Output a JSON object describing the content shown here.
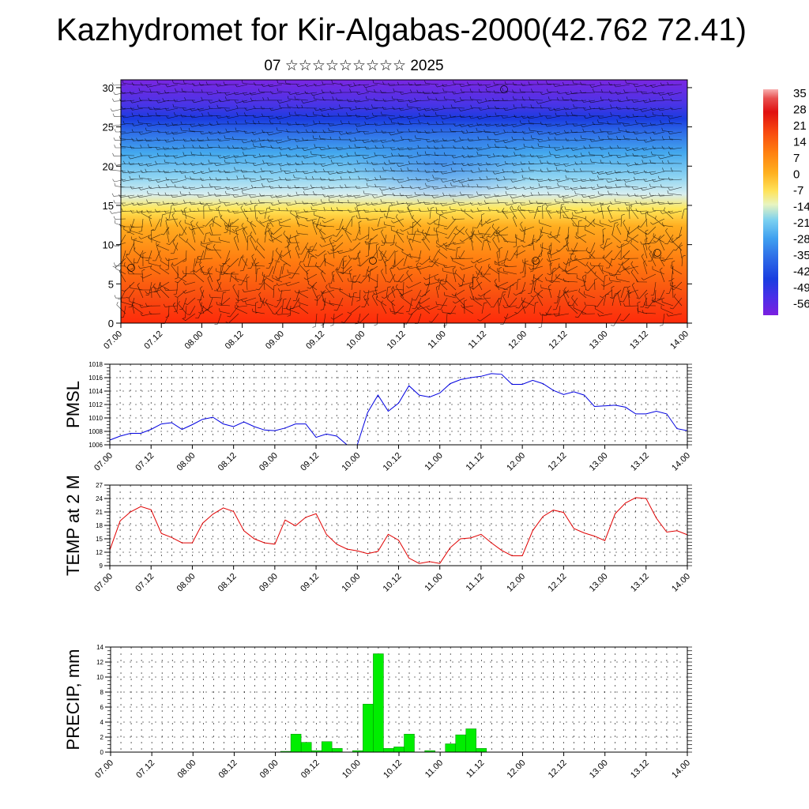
{
  "header": {
    "title": "Kazhydromet for Kir-Algabas-2000(42.762 72.41)",
    "subtitle": "07 ☆☆☆☆☆☆☆☆☆ 2025"
  },
  "colors": {
    "pmsl_line": "#0000e0",
    "temp_line": "#e00000",
    "precip_fill": "#00ee00",
    "precip_edge": "#008800",
    "wind_barb": "#000000",
    "colormap": [
      "#7b1fe0",
      "#4a2fe8",
      "#1a3de0",
      "#2f6fe8",
      "#3fa0f0",
      "#7ad0f0",
      "#e8f4c0",
      "#ffe35a",
      "#ffb01e",
      "#ff8c10",
      "#ff6a10",
      "#f83a10",
      "#e01010",
      "#f8a0a0"
    ]
  },
  "chart_data": [
    {
      "type": "heatmap",
      "name_hint": "cross-section",
      "x_tick_labels": [
        "07.00",
        "07.12",
        "08.00",
        "08.12",
        "09.00",
        "09.12",
        "10.00",
        "10.12",
        "11.00",
        "11.12",
        "12.00",
        "12.12",
        "13.00",
        "13.12",
        "14.00"
      ],
      "y_ticks": [
        0,
        5,
        10,
        15,
        20,
        25,
        30
      ],
      "ylim": [
        0,
        31
      ],
      "colorbar_labels": [
        "35",
        "28",
        "21",
        "14",
        "7",
        "0",
        "-7",
        "-14",
        "-21",
        "-28",
        "-35",
        "-42",
        "-49",
        "-56"
      ],
      "grid": false
    },
    {
      "type": "line",
      "ylabel": "PMSL",
      "x_tick_labels": [
        "07.00",
        "07.12",
        "08.00",
        "08.12",
        "09.00",
        "09.12",
        "10.00",
        "10.12",
        "11.00",
        "11.12",
        "12.00",
        "12.12",
        "13.00",
        "13.12",
        "14.00"
      ],
      "y_ticks": [
        1006,
        1008,
        1010,
        1012,
        1014,
        1016,
        1018
      ],
      "ylim": [
        1006,
        1018
      ],
      "grid": true,
      "step_hours": 3,
      "values": [
        1006.7,
        1007.3,
        1007.7,
        1007.7,
        1008.3,
        1009.1,
        1009.3,
        1008.3,
        1009.0,
        1009.8,
        1010.1,
        1009.1,
        1008.7,
        1009.4,
        1008.7,
        1008.2,
        1008.1,
        1008.5,
        1009.1,
        1009.1,
        1007.1,
        1007.6,
        1007.3,
        1006.0,
        1006.0,
        1010.8,
        1013.4,
        1011.0,
        1012.2,
        1014.8,
        1013.4,
        1013.1,
        1013.7,
        1015.1,
        1015.7,
        1016.0,
        1016.2,
        1016.6,
        1016.5,
        1015.0,
        1015.0,
        1015.6,
        1015.1,
        1014.1,
        1013.5,
        1013.9,
        1013.4,
        1011.7,
        1011.8,
        1011.9,
        1011.6,
        1010.6,
        1010.6,
        1011.0,
        1010.6,
        1008.4,
        1008.1
      ]
    },
    {
      "type": "line",
      "ylabel": "TEMP at 2 M",
      "x_tick_labels": [
        "07.00",
        "07.12",
        "08.00",
        "08.12",
        "09.00",
        "09.12",
        "10.00",
        "10.12",
        "11.00",
        "11.12",
        "12.00",
        "12.12",
        "13.00",
        "13.12",
        "14.00"
      ],
      "y_ticks": [
        9,
        12,
        15,
        18,
        21,
        24,
        27
      ],
      "ylim": [
        9,
        27
      ],
      "grid": true,
      "step_hours": 3,
      "values": [
        12.5,
        19.0,
        21.0,
        22.2,
        21.5,
        16.2,
        15.3,
        14.1,
        14.1,
        18.5,
        20.5,
        21.9,
        21.1,
        16.8,
        15.0,
        14.1,
        13.8,
        19.2,
        17.9,
        19.8,
        20.6,
        16.0,
        13.8,
        12.7,
        12.3,
        11.7,
        12.2,
        16.0,
        14.7,
        10.7,
        9.5,
        9.9,
        9.5,
        13.0,
        15.0,
        15.2,
        16.0,
        14.1,
        12.4,
        11.2,
        11.2,
        16.8,
        20.0,
        21.4,
        20.9,
        17.3,
        16.3,
        15.6,
        14.6,
        20.6,
        23.0,
        24.2,
        24.0,
        19.6,
        16.5,
        16.8,
        15.9
      ]
    },
    {
      "type": "bar",
      "ylabel": "PRECIP, mm",
      "x_tick_labels": [
        "07.00",
        "07.12",
        "08.00",
        "08.12",
        "09.00",
        "09.12",
        "10.00",
        "10.12",
        "11.00",
        "11.12",
        "12.00",
        "12.12",
        "13.00",
        "13.12",
        "14.00"
      ],
      "y_ticks": [
        0,
        2,
        4,
        6,
        8,
        10,
        12,
        14
      ],
      "ylim": [
        0,
        14
      ],
      "grid": true,
      "step_hours": 3,
      "values": [
        0,
        0,
        0,
        0,
        0,
        0,
        0,
        0,
        0,
        0,
        0,
        0,
        0,
        0,
        0,
        0,
        0,
        0.1,
        2.4,
        1.3,
        0.2,
        1.4,
        0.5,
        0,
        0.2,
        6.4,
        13.1,
        0.5,
        0.7,
        2.4,
        0,
        0.2,
        0,
        1.1,
        2.3,
        3.1,
        0.5,
        0,
        0,
        0,
        0,
        0,
        0,
        0,
        0,
        0,
        0,
        0,
        0,
        0,
        0,
        0,
        0,
        0,
        0,
        0,
        0
      ]
    }
  ]
}
